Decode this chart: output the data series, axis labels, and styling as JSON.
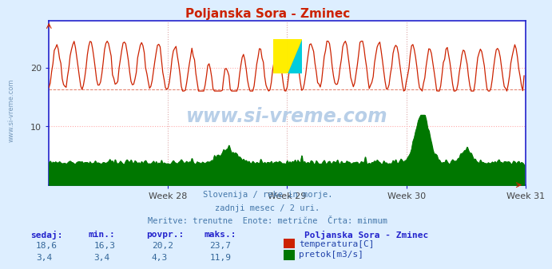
{
  "title": "Poljanska Sora - Zminec",
  "title_color": "#cc2200",
  "bg_color": "#ddeeff",
  "plot_bg_color": "#ffffff",
  "temp_color": "#cc2200",
  "flow_color": "#007700",
  "temp_min_line": 16.3,
  "temp_min": 16.3,
  "temp_max": 23.7,
  "temp_avg": 20.2,
  "temp_current": 18.6,
  "flow_min": 3.4,
  "flow_max": 11.9,
  "flow_avg": 4.3,
  "flow_current": 3.4,
  "axis_color": "#2222cc",
  "tick_color": "#444444",
  "watermark": "www.si-vreme.com",
  "watermark_color": "#b8cfe8",
  "subtitle1": "Slovenija / reke in morje.",
  "subtitle2": "zadnji mesec / 2 uri.",
  "subtitle3": "Meritve: trenutne  Enote: metrične  Črta: minmum",
  "subtitle_color": "#4477aa",
  "legend_title": "Poljanska Sora - Zminec",
  "legend_title_color": "#2222cc",
  "legend_label1": "temperatura[C]",
  "legend_label2": "pretok[m3/s]",
  "legend_color": "#2244aa",
  "stat_label_color": "#2222cc",
  "stat_value_color": "#336699",
  "n_points": 360,
  "week_labels": [
    "Week 28",
    "Week 29",
    "Week 30",
    "Week 31"
  ],
  "grid_v_color": "#ddaaaa",
  "grid_h_color": "#ffaaaa",
  "yticks": [
    10,
    20
  ],
  "ylim": [
    0,
    28
  ]
}
